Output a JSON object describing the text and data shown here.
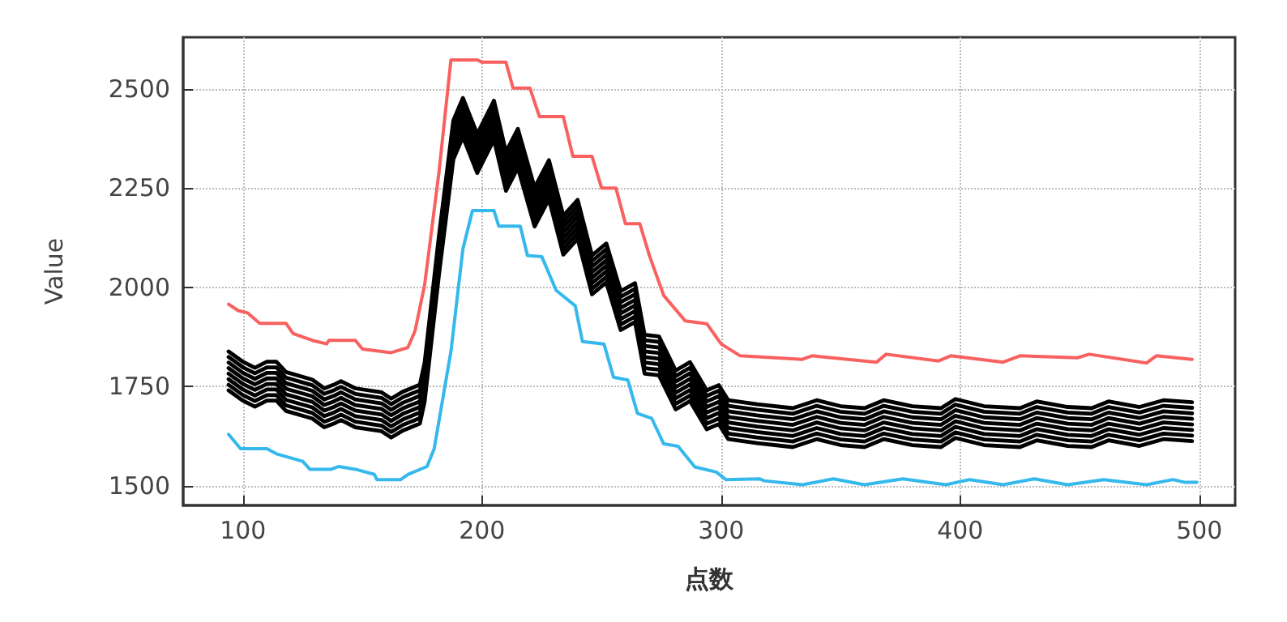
{
  "chart_data": {
    "type": "line",
    "xlabel": "点数",
    "ylabel": "Value",
    "xlim": [
      75,
      515
    ],
    "ylim": [
      1450,
      2630
    ],
    "xticks": [
      100,
      200,
      300,
      400,
      500
    ],
    "yticks": [
      1500,
      1750,
      2000,
      2250,
      2500
    ],
    "grid": true,
    "line_style": "solid",
    "x": [
      94,
      100,
      105,
      110,
      114,
      118,
      129,
      134,
      138,
      141,
      147,
      158,
      162,
      167,
      174,
      176,
      182,
      188,
      192,
      198,
      205,
      210,
      215,
      222,
      228,
      234,
      240,
      246,
      252,
      258,
      264,
      268,
      274,
      281,
      287,
      294,
      299,
      303,
      315,
      330,
      340,
      350,
      360,
      368,
      380,
      392,
      398,
      410,
      425,
      432,
      445,
      455,
      462,
      475,
      485,
      497
    ],
    "series": [
      {
        "color": "#f8615f",
        "x": [
          94,
          98,
          102,
          107,
          118,
          121,
          129,
          135,
          136,
          147,
          150,
          162,
          169,
          172,
          176,
          182,
          187,
          198,
          200,
          210,
          213,
          220,
          224,
          234,
          238,
          246,
          250,
          256,
          260,
          266,
          270,
          276,
          285,
          294,
          300,
          308,
          334,
          338,
          365,
          369,
          391,
          396,
          418,
          425,
          449,
          454,
          478,
          482,
          497
        ],
        "values": [
          1957,
          1941,
          1935,
          1909,
          1909,
          1883,
          1866,
          1857,
          1866,
          1866,
          1844,
          1835,
          1848,
          1890,
          2006,
          2290,
          2573,
          2573,
          2567,
          2567,
          2502,
          2502,
          2430,
          2430,
          2330,
          2330,
          2250,
          2250,
          2160,
          2160,
          2080,
          1979,
          1915,
          1908,
          1857,
          1827,
          1818,
          1827,
          1811,
          1831,
          1814,
          1827,
          1811,
          1827,
          1822,
          1831,
          1809,
          1827,
          1818
        ]
      },
      {
        "color": "#35b8ec",
        "x": [
          94,
          99,
          110,
          114,
          125,
          128,
          137,
          140,
          147,
          155,
          156,
          166,
          169,
          177,
          180,
          187,
          192,
          196,
          205,
          207,
          216,
          219,
          225,
          231,
          239,
          242,
          251,
          255,
          261,
          265,
          271,
          276,
          282,
          289,
          298,
          302,
          316,
          318,
          334,
          347,
          360,
          376,
          394,
          404,
          418,
          431,
          445,
          460,
          478,
          489,
          494,
          499
        ],
        "values": [
          1629,
          1593,
          1593,
          1580,
          1561,
          1541,
          1541,
          1548,
          1541,
          1528,
          1515,
          1515,
          1528,
          1548,
          1593,
          1838,
          2096,
          2193,
          2193,
          2154,
          2154,
          2080,
          2077,
          1992,
          1953,
          1863,
          1857,
          1773,
          1766,
          1682,
          1669,
          1605,
          1599,
          1547,
          1534,
          1515,
          1517,
          1512,
          1502,
          1517,
          1502,
          1517,
          1502,
          1515,
          1502,
          1517,
          1502,
          1515,
          1502,
          1515,
          1508,
          1508
        ]
      },
      {
        "color": "#000000",
        "values": [
          1838,
          1812,
          1797,
          1812,
          1812,
          1786,
          1767,
          1745,
          1754,
          1763,
          1745,
          1735,
          1719,
          1737,
          1754,
          1810,
          2130,
          2420,
          2477,
          2386,
          2470,
          2341,
          2399,
          2251,
          2320,
          2180,
          2220,
          2080,
          2110,
          1990,
          2010,
          1880,
          1876,
          1790,
          1811,
          1740,
          1753,
          1715,
          1705,
          1695,
          1715,
          1700,
          1695,
          1715,
          1700,
          1695,
          1718,
          1700,
          1695,
          1712,
          1698,
          1695,
          1712,
          1698,
          1715,
          1710
        ]
      },
      {
        "color": "#000000",
        "values": [
          1824,
          1798,
          1783,
          1798,
          1798,
          1772,
          1753,
          1731,
          1740,
          1749,
          1731,
          1721,
          1705,
          1723,
          1740,
          1796,
          2116,
          2406,
          2463,
          2372,
          2456,
          2327,
          2385,
          2237,
          2306,
          2166,
          2206,
          2066,
          2096,
          1976,
          1996,
          1866,
          1862,
          1776,
          1797,
          1726,
          1739,
          1701,
          1691,
          1681,
          1701,
          1686,
          1681,
          1701,
          1686,
          1681,
          1704,
          1686,
          1681,
          1698,
          1684,
          1681,
          1698,
          1684,
          1701,
          1696
        ]
      },
      {
        "color": "#000000",
        "values": [
          1810,
          1784,
          1769,
          1784,
          1784,
          1758,
          1739,
          1717,
          1726,
          1735,
          1717,
          1707,
          1691,
          1709,
          1726,
          1782,
          2102,
          2392,
          2449,
          2358,
          2442,
          2313,
          2371,
          2223,
          2292,
          2152,
          2192,
          2052,
          2082,
          1962,
          1982,
          1852,
          1848,
          1762,
          1783,
          1712,
          1725,
          1687,
          1677,
          1667,
          1687,
          1672,
          1667,
          1687,
          1672,
          1667,
          1690,
          1672,
          1667,
          1684,
          1670,
          1667,
          1684,
          1670,
          1687,
          1682
        ]
      },
      {
        "color": "#000000",
        "values": [
          1796,
          1770,
          1755,
          1770,
          1770,
          1744,
          1725,
          1703,
          1712,
          1721,
          1703,
          1693,
          1677,
          1695,
          1712,
          1768,
          2088,
          2378,
          2435,
          2344,
          2428,
          2299,
          2357,
          2209,
          2278,
          2138,
          2178,
          2038,
          2068,
          1948,
          1968,
          1838,
          1834,
          1748,
          1769,
          1698,
          1711,
          1673,
          1663,
          1653,
          1673,
          1658,
          1653,
          1673,
          1658,
          1653,
          1676,
          1658,
          1653,
          1670,
          1656,
          1653,
          1670,
          1656,
          1673,
          1668
        ]
      },
      {
        "color": "#000000",
        "values": [
          1782,
          1756,
          1741,
          1756,
          1756,
          1730,
          1711,
          1689,
          1698,
          1707,
          1689,
          1679,
          1663,
          1681,
          1698,
          1754,
          2074,
          2364,
          2421,
          2330,
          2414,
          2285,
          2343,
          2195,
          2264,
          2124,
          2164,
          2024,
          2054,
          1934,
          1954,
          1824,
          1820,
          1734,
          1755,
          1684,
          1697,
          1659,
          1649,
          1639,
          1659,
          1644,
          1639,
          1659,
          1644,
          1639,
          1662,
          1644,
          1639,
          1656,
          1642,
          1639,
          1656,
          1642,
          1659,
          1654
        ]
      },
      {
        "color": "#000000",
        "values": [
          1768,
          1742,
          1727,
          1742,
          1742,
          1716,
          1697,
          1675,
          1684,
          1693,
          1675,
          1665,
          1649,
          1667,
          1684,
          1740,
          2060,
          2350,
          2407,
          2316,
          2400,
          2271,
          2329,
          2181,
          2250,
          2110,
          2150,
          2010,
          2040,
          1920,
          1940,
          1810,
          1806,
          1720,
          1741,
          1670,
          1683,
          1645,
          1635,
          1625,
          1645,
          1630,
          1625,
          1645,
          1630,
          1625,
          1648,
          1630,
          1625,
          1642,
          1628,
          1625,
          1642,
          1628,
          1645,
          1640
        ]
      },
      {
        "color": "#000000",
        "values": [
          1754,
          1728,
          1713,
          1728,
          1728,
          1702,
          1683,
          1661,
          1670,
          1679,
          1661,
          1651,
          1635,
          1653,
          1670,
          1726,
          2046,
          2336,
          2393,
          2302,
          2386,
          2257,
          2315,
          2167,
          2236,
          2096,
          2136,
          1996,
          2026,
          1906,
          1926,
          1796,
          1792,
          1706,
          1727,
          1656,
          1669,
          1631,
          1621,
          1611,
          1631,
          1616,
          1611,
          1631,
          1616,
          1611,
          1634,
          1616,
          1611,
          1628,
          1614,
          1611,
          1628,
          1614,
          1631,
          1626
        ]
      },
      {
        "color": "#000000",
        "values": [
          1740,
          1714,
          1699,
          1714,
          1714,
          1688,
          1669,
          1647,
          1656,
          1665,
          1647,
          1637,
          1621,
          1639,
          1656,
          1712,
          2032,
          2322,
          2379,
          2288,
          2372,
          2243,
          2301,
          2153,
          2222,
          2082,
          2122,
          1982,
          2012,
          1892,
          1912,
          1782,
          1778,
          1692,
          1713,
          1642,
          1655,
          1617,
          1607,
          1597,
          1617,
          1602,
          1597,
          1617,
          1602,
          1597,
          1620,
          1602,
          1597,
          1614,
          1600,
          1597,
          1614,
          1600,
          1617,
          1612
        ]
      }
    ]
  }
}
